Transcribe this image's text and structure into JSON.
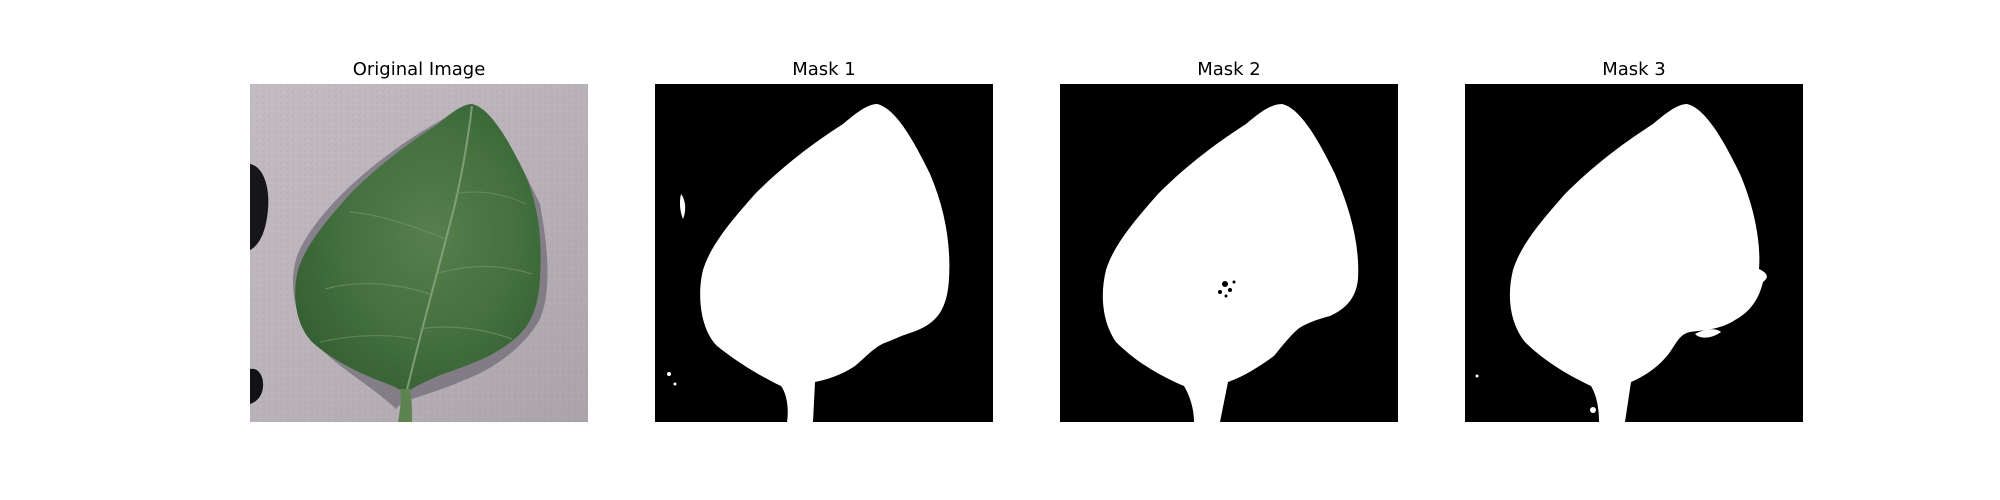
{
  "figure": {
    "panels": [
      {
        "title": "Original Image"
      },
      {
        "title": "Mask 1"
      },
      {
        "title": "Mask 2"
      },
      {
        "title": "Mask 3"
      }
    ]
  },
  "colors": {
    "background": "#ffffff",
    "mask_foreground": "#ffffff",
    "mask_background": "#000000",
    "leaf_green": "#3f6e3a",
    "surface_gray": "#b9b2b8"
  }
}
